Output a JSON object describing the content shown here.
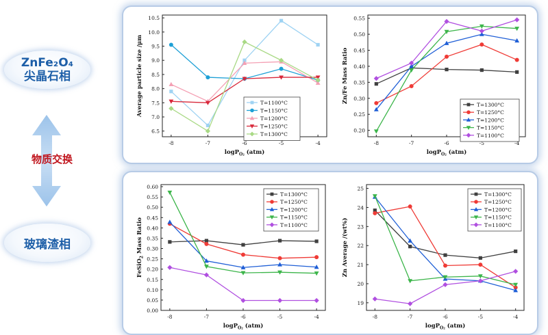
{
  "left": {
    "top_label_formula": "ZnFe₂O₄",
    "top_label_cn": "尖晶石相",
    "bottom_label_cn": "玻璃渣相",
    "exchange_label": "物质交换"
  },
  "colors": {
    "T1100_sq": "#9fd3f3",
    "T1150_circ": "#1ea0d6",
    "T1200_tri": "#f4a0b4",
    "T1250_tri_down": "#d8283a",
    "T1300_dia": "#a9d985",
    "black": "#404040",
    "red": "#ef3b36",
    "blue": "#1e5ed6",
    "green": "#3cb54a",
    "purple": "#b04fe0",
    "accent_blue": "#1e5fa8",
    "accent_red": "#c0161e"
  },
  "chart_data": [
    {
      "id": "c1",
      "type": "line",
      "ylabel": "Average particle size /μm",
      "xlabel": "logP",
      "xlabel_sub": "O₂",
      "xlabel_tail": " (atm)",
      "x": [
        -8,
        -7,
        -6,
        -5,
        -4
      ],
      "xticks": [
        "-8",
        "-7",
        "-6",
        "-5",
        "-4"
      ],
      "ylim": [
        6.3,
        10.6
      ],
      "yticks": [
        6.5,
        7.0,
        7.5,
        8.0,
        8.5,
        9.0,
        9.5,
        10.0,
        10.5
      ],
      "ytick_labels": [
        "6.5",
        "7.0",
        "7.5",
        "8.0",
        "8.5",
        "9.0",
        "9.5",
        "10.0",
        "10.5"
      ],
      "legend_position": "bottom-right",
      "series": [
        {
          "name": "T=1100°C",
          "color_key": "T1100_sq",
          "marker": "square",
          "values": [
            7.9,
            6.7,
            9.0,
            10.4,
            9.55
          ]
        },
        {
          "name": "T=1150°C",
          "color_key": "T1150_circ",
          "marker": "circle",
          "values": [
            9.55,
            8.4,
            8.35,
            8.7,
            8.3
          ]
        },
        {
          "name": "T=1200°C",
          "color_key": "T1200_tri",
          "marker": "triangle",
          "values": [
            8.15,
            7.55,
            8.9,
            8.95,
            8.2
          ]
        },
        {
          "name": "T=1250°C",
          "color_key": "T1250_tri_down",
          "marker": "triangle-down",
          "values": [
            7.55,
            7.5,
            8.35,
            8.4,
            8.4
          ]
        },
        {
          "name": "T=1300°C",
          "color_key": "T1300_dia",
          "marker": "diamond",
          "values": [
            7.3,
            6.5,
            9.65,
            9.0,
            8.3
          ]
        }
      ]
    },
    {
      "id": "c2",
      "type": "line",
      "ylabel": "Zn/Fe Mass Ratio",
      "xlabel": "logP",
      "xlabel_sub": "O₂",
      "xlabel_tail": " (atm)",
      "x": [
        -8,
        -7,
        -6,
        -5,
        -4
      ],
      "xticks": [
        "-8",
        "-7",
        "-6",
        "-5",
        "-4"
      ],
      "ylim": [
        0.18,
        0.56
      ],
      "yticks": [
        0.2,
        0.25,
        0.3,
        0.35,
        0.4,
        0.45,
        0.5,
        0.55
      ],
      "ytick_labels": [
        "0.20",
        "0.25",
        "0.30",
        "0.35",
        "0.40",
        "0.45",
        "0.50",
        "0.55"
      ],
      "legend_position": "bottom-right",
      "series": [
        {
          "name": "T=1300°C",
          "color_key": "black",
          "marker": "square",
          "values": [
            0.345,
            0.395,
            0.39,
            0.388,
            0.382
          ]
        },
        {
          "name": "T=1250°C",
          "color_key": "red",
          "marker": "circle",
          "values": [
            0.285,
            0.338,
            0.43,
            0.468,
            0.42
          ]
        },
        {
          "name": "T=1200°C",
          "color_key": "blue",
          "marker": "triangle",
          "values": [
            0.265,
            0.4,
            0.472,
            0.5,
            0.48
          ]
        },
        {
          "name": "T=1150°C",
          "color_key": "green",
          "marker": "triangle-down",
          "values": [
            0.197,
            0.388,
            0.508,
            0.525,
            0.518
          ]
        },
        {
          "name": "T=1100°C",
          "color_key": "purple",
          "marker": "diamond",
          "values": [
            0.362,
            0.41,
            0.54,
            0.51,
            0.545
          ]
        }
      ]
    },
    {
      "id": "c3",
      "type": "line",
      "ylabel": "FeSiO",
      "ylabel_sub": "2",
      "ylabel_tail": " Mass Ratio",
      "xlabel": "logP",
      "xlabel_sub": "O₂",
      "xlabel_tail": " (atm)",
      "x": [
        -8,
        -7,
        -6,
        -5,
        -4
      ],
      "xticks": [
        "-8",
        "-7",
        "-6",
        "-5",
        "-4"
      ],
      "ylim": [
        0.0,
        0.61
      ],
      "yticks": [
        0.0,
        0.05,
        0.1,
        0.15,
        0.2,
        0.25,
        0.3,
        0.35,
        0.4,
        0.45,
        0.5,
        0.55,
        0.6
      ],
      "ytick_labels": [
        "0.00",
        "0.05",
        "0.10",
        "0.15",
        "0.20",
        "0.25",
        "0.30",
        "0.35",
        "0.40",
        "0.45",
        "0.50",
        "0.55",
        "0.60"
      ],
      "legend_position": "top-right",
      "series": [
        {
          "name": "T=1300°C",
          "color_key": "black",
          "marker": "square",
          "values": [
            0.332,
            0.338,
            0.318,
            0.338,
            0.335
          ]
        },
        {
          "name": "T=1250°C",
          "color_key": "red",
          "marker": "circle",
          "values": [
            0.42,
            0.322,
            0.27,
            0.253,
            0.258
          ]
        },
        {
          "name": "T=1200°C",
          "color_key": "blue",
          "marker": "triangle",
          "values": [
            0.428,
            0.24,
            0.208,
            0.222,
            0.21
          ]
        },
        {
          "name": "T=1150°C",
          "color_key": "green",
          "marker": "triangle-down",
          "values": [
            0.572,
            0.213,
            0.182,
            0.185,
            0.18
          ]
        },
        {
          "name": "T=1100°C",
          "color_key": "purple",
          "marker": "diamond",
          "values": [
            0.208,
            0.172,
            0.048,
            0.048,
            0.048
          ]
        }
      ]
    },
    {
      "id": "c4",
      "type": "line",
      "ylabel": "Zn Average /(wt%)",
      "xlabel": "logP",
      "xlabel_sub": "O₂",
      "xlabel_tail": " (atm)",
      "x": [
        -8,
        -7,
        -6,
        -5,
        -4
      ],
      "xticks": [
        "-8",
        "-7",
        "-6",
        "-5",
        "-4"
      ],
      "ylim": [
        18.6,
        25.2
      ],
      "yticks": [
        19,
        20,
        21,
        22,
        23,
        24,
        25
      ],
      "ytick_labels": [
        "19",
        "20",
        "21",
        "22",
        "23",
        "24",
        "25"
      ],
      "legend_position": "top-right",
      "series": [
        {
          "name": "T=1300°C",
          "color_key": "black",
          "marker": "square",
          "values": [
            23.85,
            21.95,
            21.5,
            21.35,
            21.7
          ]
        },
        {
          "name": "T=1250°C",
          "color_key": "red",
          "marker": "circle",
          "values": [
            23.7,
            24.05,
            20.95,
            21.0,
            19.8
          ]
        },
        {
          "name": "T=1200°C",
          "color_key": "blue",
          "marker": "triangle",
          "values": [
            24.55,
            22.25,
            20.25,
            20.15,
            19.65
          ]
        },
        {
          "name": "T=1150°C",
          "color_key": "green",
          "marker": "triangle-down",
          "values": [
            24.6,
            20.15,
            20.35,
            20.4,
            19.95
          ]
        },
        {
          "name": "T=1100°C",
          "color_key": "purple",
          "marker": "diamond",
          "values": [
            19.2,
            18.95,
            19.95,
            20.15,
            20.65
          ]
        }
      ]
    }
  ]
}
